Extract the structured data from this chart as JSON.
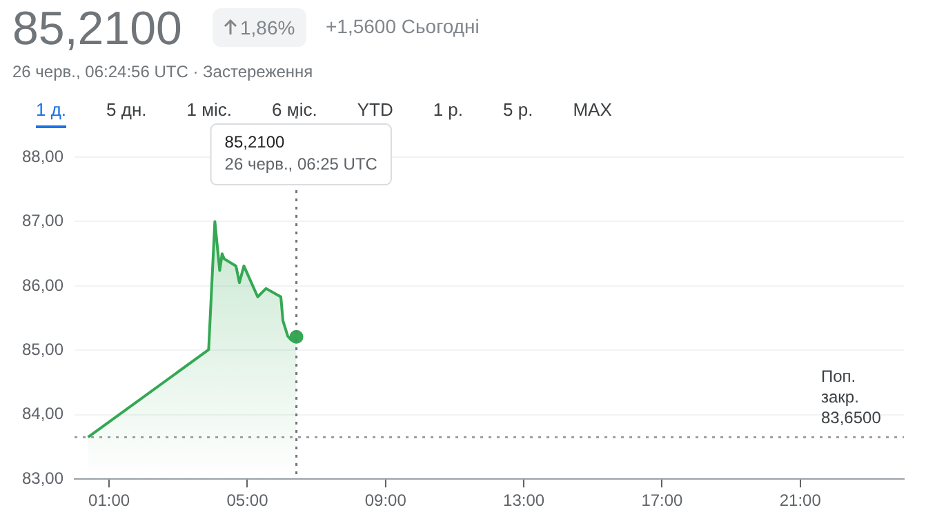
{
  "chart_data": {
    "type": "area",
    "title": "85,2100",
    "subtitle": "26 черв., 06:24:56 UTC · Застереження",
    "annotations": [
      "1,86%",
      "+1,5600 Сьогодні",
      "1 д.",
      "5 дн.",
      "1 міс.",
      "6 міс.",
      "YTD",
      "1 р.",
      "5 р.",
      "MAX",
      "85,2100\n26 черв., 06:25 UTC"
    ],
    "x": [
      0.39,
      3.88,
      4.06,
      4.2,
      4.27,
      4.33,
      4.67,
      4.77,
      4.9,
      5.3,
      5.54,
      5.97,
      6.03,
      6.17,
      6.27,
      6.42
    ],
    "series": [
      {
        "color": "#34a853",
        "values": [
          83.65,
          85.01,
          87.0,
          86.24,
          86.5,
          86.42,
          86.31,
          86.05,
          86.31,
          85.83,
          85.96,
          85.83,
          85.46,
          85.22,
          85.16,
          85.21
        ]
      }
    ],
    "xlim": [
      0,
      24
    ],
    "xticks": [
      {
        "value": 1,
        "label": "01:00"
      },
      {
        "value": 5,
        "label": "05:00"
      },
      {
        "value": 9,
        "label": "09:00"
      },
      {
        "value": 13,
        "label": "13:00"
      },
      {
        "value": 17,
        "label": "17:00"
      },
      {
        "value": 21,
        "label": "21:00"
      }
    ],
    "ylim": [
      83,
      88
    ],
    "yticks": [
      {
        "value": 83,
        "label": "83,00"
      },
      {
        "value": 84,
        "label": "84,00"
      },
      {
        "value": 85,
        "label": "85,00"
      },
      {
        "value": 86,
        "label": "86,00"
      },
      {
        "value": 87,
        "label": "87,00"
      },
      {
        "value": 88,
        "label": "88,00"
      }
    ],
    "ref_lines": [
      {
        "axis": "y",
        "value": 83.65,
        "label": "Поп.\nзакр.\n83,6500",
        "color": "#9aa0a6",
        "line_style": "dotted"
      },
      {
        "axis": "x",
        "value": 6.42,
        "color": "#70757a",
        "line_style": "dotted"
      }
    ],
    "grid": "y",
    "legend": false
  }
}
